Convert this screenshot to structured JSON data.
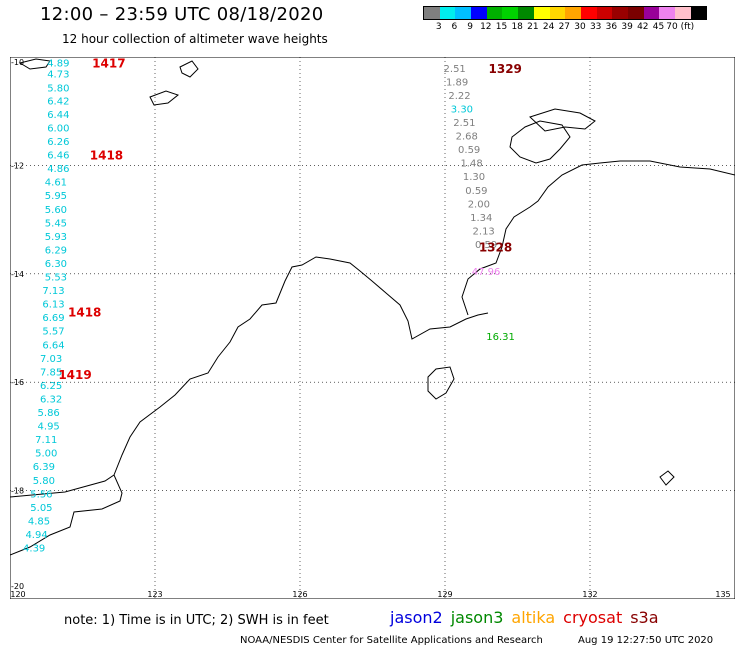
{
  "header": {
    "title": "12:00 – 23:59 UTC 08/18/2020",
    "subtitle": "12 hour collection of altimeter wave heights"
  },
  "legend": {
    "colors": [
      "#7f7f7f",
      "#00eeee",
      "#00bfff",
      "#0000ff",
      "#00b000",
      "#00d200",
      "#008800",
      "#ffff00",
      "#ffd700",
      "#ffa500",
      "#ff0000",
      "#cc0000",
      "#990000",
      "#7a0000",
      "#990099",
      "#ee82ee",
      "#ffc0cb",
      "#000000"
    ],
    "labels": [
      "3",
      "6",
      "9",
      "12",
      "15",
      "18",
      "21",
      "24",
      "27",
      "30",
      "33",
      "36",
      "39",
      "42",
      "45",
      "70 (ft)"
    ]
  },
  "map": {
    "lon_range": [
      120,
      135
    ],
    "lat_range": [
      -20,
      -10
    ],
    "lon_ticks": [
      {
        "value": 120,
        "label": "120"
      },
      {
        "value": 123,
        "label": "123"
      },
      {
        "value": 126,
        "label": "126"
      },
      {
        "value": 129,
        "label": "129"
      },
      {
        "value": 132,
        "label": "132"
      },
      {
        "value": 135,
        "label": "135"
      }
    ],
    "lat_ticks": [
      {
        "value": -10,
        "label": "-10"
      },
      {
        "value": -12,
        "label": "-12"
      },
      {
        "value": -14,
        "label": "-14"
      },
      {
        "value": -16,
        "label": "-16"
      },
      {
        "value": -18,
        "label": "-18"
      },
      {
        "value": -20,
        "label": "-20"
      }
    ],
    "passes": [
      {
        "label": "1417",
        "lon": 121.7,
        "lat": -10.1,
        "color": "#dd0000"
      },
      {
        "label": "1418",
        "lon": 121.65,
        "lat": -11.8,
        "color": "#dd0000"
      },
      {
        "label": "1418",
        "lon": 121.2,
        "lat": -14.7,
        "color": "#dd0000"
      },
      {
        "label": "1419",
        "lon": 121.0,
        "lat": -15.85,
        "color": "#dd0000"
      },
      {
        "label": "1329",
        "lon": 129.9,
        "lat": -10.2,
        "color": "#880000"
      },
      {
        "label": "1328",
        "lon": 129.7,
        "lat": -13.5,
        "color": "#880000"
      }
    ],
    "observations": [
      {
        "text": "4.89",
        "lon": 121.0,
        "lat": -10.1,
        "color": "#00c8d8"
      },
      {
        "text": "4.73",
        "lon": 121.0,
        "lat": -10.3,
        "color": "#00c8d8"
      },
      {
        "text": "5.80",
        "lon": 121.0,
        "lat": -10.56,
        "color": "#00c8d8"
      },
      {
        "text": "6.42",
        "lon": 121.0,
        "lat": -10.8,
        "color": "#00c8d8"
      },
      {
        "text": "6.44",
        "lon": 121.0,
        "lat": -11.05,
        "color": "#00c8d8"
      },
      {
        "text": "6.00",
        "lon": 121.0,
        "lat": -11.3,
        "color": "#00c8d8"
      },
      {
        "text": "6.26",
        "lon": 121.0,
        "lat": -11.55,
        "color": "#00c8d8"
      },
      {
        "text": "6.46",
        "lon": 121.0,
        "lat": -11.8,
        "color": "#00c8d8"
      },
      {
        "text": "4.86",
        "lon": 121.0,
        "lat": -12.05,
        "color": "#00c8d8"
      },
      {
        "text": "4.61",
        "lon": 120.95,
        "lat": -12.3,
        "color": "#00c8d8"
      },
      {
        "text": "5.95",
        "lon": 120.95,
        "lat": -12.55,
        "color": "#00c8d8"
      },
      {
        "text": "5.60",
        "lon": 120.95,
        "lat": -12.8,
        "color": "#00c8d8"
      },
      {
        "text": "5.45",
        "lon": 120.95,
        "lat": -13.05,
        "color": "#00c8d8"
      },
      {
        "text": "5.93",
        "lon": 120.95,
        "lat": -13.3,
        "color": "#00c8d8"
      },
      {
        "text": "6.29",
        "lon": 120.95,
        "lat": -13.55,
        "color": "#00c8d8"
      },
      {
        "text": "6.30",
        "lon": 120.95,
        "lat": -13.8,
        "color": "#00c8d8"
      },
      {
        "text": "5.53",
        "lon": 120.95,
        "lat": -14.05,
        "color": "#00c8d8"
      },
      {
        "text": "7.13",
        "lon": 120.9,
        "lat": -14.3,
        "color": "#00c8d8"
      },
      {
        "text": "6.13",
        "lon": 120.9,
        "lat": -14.55,
        "color": "#00c8d8"
      },
      {
        "text": "6.69",
        "lon": 120.9,
        "lat": -14.8,
        "color": "#00c8d8"
      },
      {
        "text": "5.57",
        "lon": 120.9,
        "lat": -15.05,
        "color": "#00c8d8"
      },
      {
        "text": "6.64",
        "lon": 120.9,
        "lat": -15.3,
        "color": "#00c8d8"
      },
      {
        "text": "7.03",
        "lon": 120.85,
        "lat": -15.55,
        "color": "#00c8d8"
      },
      {
        "text": "7.85",
        "lon": 120.85,
        "lat": -15.8,
        "color": "#00c8d8"
      },
      {
        "text": "6.25",
        "lon": 120.85,
        "lat": -16.05,
        "color": "#00c8d8"
      },
      {
        "text": "6.32",
        "lon": 120.85,
        "lat": -16.3,
        "color": "#00c8d8"
      },
      {
        "text": "5.86",
        "lon": 120.8,
        "lat": -16.55,
        "color": "#00c8d8"
      },
      {
        "text": "4.95",
        "lon": 120.8,
        "lat": -16.8,
        "color": "#00c8d8"
      },
      {
        "text": "7.11",
        "lon": 120.75,
        "lat": -17.05,
        "color": "#00c8d8"
      },
      {
        "text": "5.00",
        "lon": 120.75,
        "lat": -17.3,
        "color": "#00c8d8"
      },
      {
        "text": "6.39",
        "lon": 120.7,
        "lat": -17.55,
        "color": "#00c8d8"
      },
      {
        "text": "5.80",
        "lon": 120.7,
        "lat": -17.8,
        "color": "#00c8d8"
      },
      {
        "text": "5.56",
        "lon": 120.65,
        "lat": -18.05,
        "color": "#00c8d8"
      },
      {
        "text": "5.05",
        "lon": 120.65,
        "lat": -18.3,
        "color": "#00c8d8"
      },
      {
        "text": "4.85",
        "lon": 120.6,
        "lat": -18.55,
        "color": "#00c8d8"
      },
      {
        "text": "4.94",
        "lon": 120.55,
        "lat": -18.8,
        "color": "#00c8d8"
      },
      {
        "text": "4.39",
        "lon": 120.5,
        "lat": -19.05,
        "color": "#00c8d8"
      },
      {
        "text": "2.51",
        "lon": 129.2,
        "lat": -10.2,
        "color": "#7f7f7f"
      },
      {
        "text": "1.89",
        "lon": 129.25,
        "lat": -10.45,
        "color": "#7f7f7f"
      },
      {
        "text": "2.22",
        "lon": 129.3,
        "lat": -10.7,
        "color": "#7f7f7f"
      },
      {
        "text": "3.30",
        "lon": 129.35,
        "lat": -10.95,
        "color": "#00c8d8"
      },
      {
        "text": "2.51",
        "lon": 129.4,
        "lat": -11.2,
        "color": "#7f7f7f"
      },
      {
        "text": "2.68",
        "lon": 129.45,
        "lat": -11.45,
        "color": "#7f7f7f"
      },
      {
        "text": "0.59",
        "lon": 129.5,
        "lat": -11.7,
        "color": "#7f7f7f"
      },
      {
        "text": "1.48",
        "lon": 129.55,
        "lat": -11.95,
        "color": "#7f7f7f"
      },
      {
        "text": "1.30",
        "lon": 129.6,
        "lat": -12.2,
        "color": "#7f7f7f"
      },
      {
        "text": "0.59",
        "lon": 129.65,
        "lat": -12.45,
        "color": "#7f7f7f"
      },
      {
        "text": "2.00",
        "lon": 129.7,
        "lat": -12.7,
        "color": "#7f7f7f"
      },
      {
        "text": "1.34",
        "lon": 129.75,
        "lat": -12.95,
        "color": "#7f7f7f"
      },
      {
        "text": "2.13",
        "lon": 129.8,
        "lat": -13.2,
        "color": "#7f7f7f"
      },
      {
        "text": "0.59",
        "lon": 129.85,
        "lat": -13.45,
        "color": "#7f7f7f"
      },
      {
        "text": "47.96",
        "lon": 129.85,
        "lat": -13.95,
        "color": "#ee82ee"
      },
      {
        "text": "16.31",
        "lon": 130.15,
        "lat": -15.15,
        "color": "#00aa00"
      }
    ]
  },
  "footer": {
    "note": "note: 1) Time is in UTC; 2) SWH is in feet",
    "satellites": [
      {
        "name": "jason2",
        "color": "#0000dd"
      },
      {
        "name": "jason3",
        "color": "#008800"
      },
      {
        "name": "altika",
        "color": "#ffa500"
      },
      {
        "name": "cryosat",
        "color": "#dd0000"
      },
      {
        "name": "s3a",
        "color": "#880000"
      }
    ],
    "credit": "NOAA/NESDIS Center for Satellite Applications and Research",
    "timestamp": "Aug 19 12:27:50 UTC 2020"
  }
}
